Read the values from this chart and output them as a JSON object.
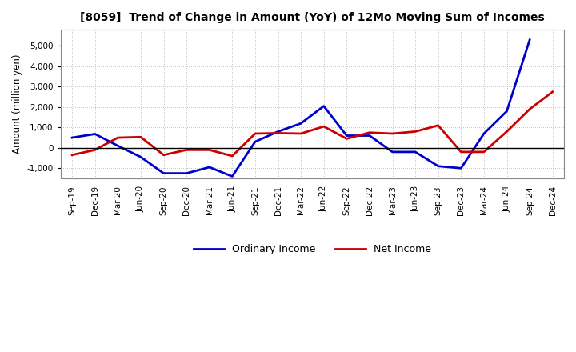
{
  "title": "[8059]  Trend of Change in Amount (YoY) of 12Mo Moving Sum of Incomes",
  "ylabel": "Amount (million yen)",
  "x_labels": [
    "Sep-19",
    "Dec-19",
    "Mar-20",
    "Jun-20",
    "Sep-20",
    "Dec-20",
    "Mar-21",
    "Jun-21",
    "Sep-21",
    "Dec-21",
    "Mar-22",
    "Jun-22",
    "Sep-22",
    "Dec-22",
    "Mar-23",
    "Jun-23",
    "Sep-23",
    "Dec-23",
    "Mar-24",
    "Jun-24",
    "Sep-24",
    "Dec-24"
  ],
  "ordinary_income": [
    500,
    680,
    100,
    -450,
    -1250,
    -1250,
    -950,
    -1400,
    300,
    800,
    1200,
    2050,
    600,
    600,
    -200,
    -200,
    -900,
    -1000,
    700,
    1800,
    5300,
    null
  ],
  "net_income": [
    -350,
    -100,
    500,
    530,
    -350,
    -100,
    -100,
    -400,
    700,
    720,
    700,
    1050,
    450,
    750,
    700,
    800,
    1100,
    -200,
    -200,
    800,
    1900,
    2750
  ],
  "ordinary_color": "#0000cc",
  "net_color": "#cc0000",
  "ylim": [
    -1500,
    5800
  ],
  "yticks": [
    -1000,
    0,
    1000,
    2000,
    3000,
    4000,
    5000
  ],
  "background_color": "#ffffff",
  "grid_color": "#999999",
  "legend_ordinary": "Ordinary Income",
  "legend_net": "Net Income",
  "linewidth": 2.0
}
